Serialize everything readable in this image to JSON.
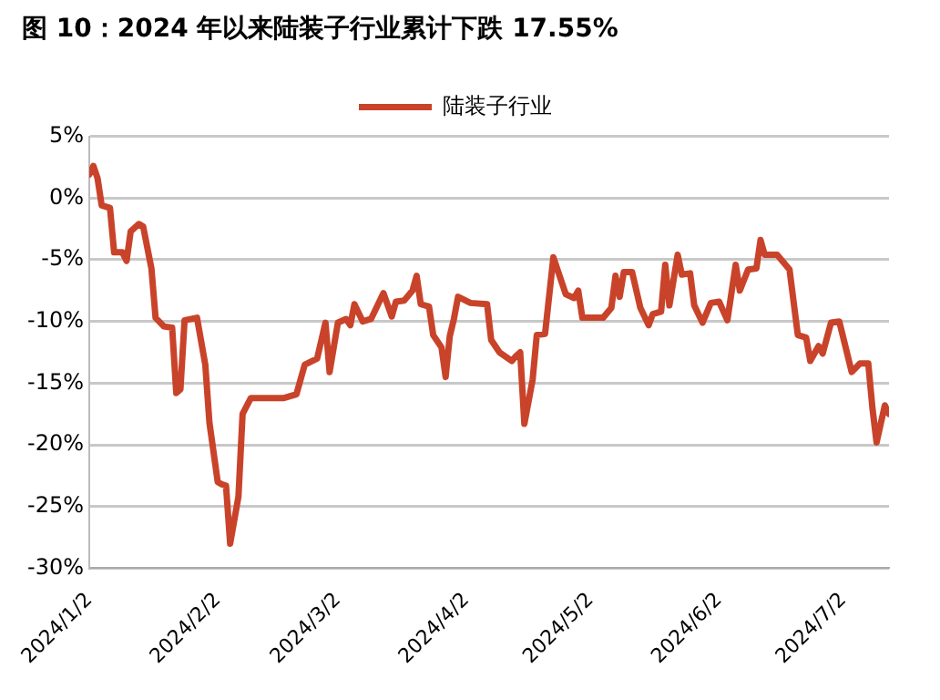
{
  "chart_data": {
    "type": "line",
    "title": "图 10：2024 年以来陆装子行业累计下跌 17.55%",
    "x": [
      "2024-01-02",
      "2024-01-03",
      "2024-01-04",
      "2024-01-05",
      "2024-01-07",
      "2024-01-08",
      "2024-01-10",
      "2024-01-11",
      "2024-01-12",
      "2024-01-14",
      "2024-01-15",
      "2024-01-17",
      "2024-01-18",
      "2024-01-20",
      "2024-01-22",
      "2024-01-23",
      "2024-01-24",
      "2024-01-25",
      "2024-01-28",
      "2024-01-30",
      "2024-01-31",
      "2024-02-02",
      "2024-02-03",
      "2024-02-04",
      "2024-02-05",
      "2024-02-07",
      "2024-02-08",
      "2024-02-10",
      "2024-02-18",
      "2024-02-21",
      "2024-02-23",
      "2024-02-26",
      "2024-02-28",
      "2024-02-29",
      "2024-03-02",
      "2024-03-04",
      "2024-03-05",
      "2024-03-06",
      "2024-03-08",
      "2024-03-10",
      "2024-03-13",
      "2024-03-15",
      "2024-03-16",
      "2024-03-18",
      "2024-03-20",
      "2024-03-21",
      "2024-03-22",
      "2024-03-24",
      "2024-03-25",
      "2024-03-27",
      "2024-03-28",
      "2024-03-29",
      "2024-03-30",
      "2024-03-31",
      "2024-04-03",
      "2024-04-07",
      "2024-04-08",
      "2024-04-10",
      "2024-04-13",
      "2024-04-14",
      "2024-04-15",
      "2024-04-16",
      "2024-04-18",
      "2024-04-19",
      "2024-04-21",
      "2024-04-23",
      "2024-04-26",
      "2024-04-28",
      "2024-04-29",
      "2024-04-30",
      "2024-05-05",
      "2024-05-07",
      "2024-05-08",
      "2024-05-09",
      "2024-05-10",
      "2024-05-12",
      "2024-05-14",
      "2024-05-16",
      "2024-05-17",
      "2024-05-19",
      "2024-05-20",
      "2024-05-21",
      "2024-05-23",
      "2024-05-24",
      "2024-05-26",
      "2024-05-27",
      "2024-05-29",
      "2024-05-31",
      "2024-06-02",
      "2024-06-04",
      "2024-06-06",
      "2024-06-07",
      "2024-06-09",
      "2024-06-11",
      "2024-06-12",
      "2024-06-13",
      "2024-06-16",
      "2024-06-19",
      "2024-06-21",
      "2024-06-23",
      "2024-06-24",
      "2024-06-26",
      "2024-06-27",
      "2024-06-29",
      "2024-07-01",
      "2024-07-04",
      "2024-07-06",
      "2024-07-08",
      "2024-07-09",
      "2024-07-10",
      "2024-07-12",
      "2024-07-13"
    ],
    "series": [
      {
        "name": "陆装子行业",
        "color": "#c9432a",
        "values": [
          1.9,
          2.6,
          1.6,
          -0.6,
          -0.8,
          -4.4,
          -4.4,
          -5.1,
          -2.7,
          -2.1,
          -2.3,
          -5.7,
          -9.7,
          -10.4,
          -10.5,
          -15.8,
          -15.5,
          -9.9,
          -9.7,
          -13.5,
          -18.2,
          -23,
          -23.2,
          -23.3,
          -28,
          -24.2,
          -17.5,
          -16.2,
          -16.2,
          -15.9,
          -13.5,
          -13,
          -10.1,
          -14.1,
          -10.1,
          -9.8,
          -10.3,
          -8.6,
          -10,
          -9.8,
          -7.7,
          -9.6,
          -8.4,
          -8.3,
          -7.5,
          -6.3,
          -8.6,
          -8.8,
          -11.1,
          -12.1,
          -14.5,
          -11.2,
          -9.8,
          -8,
          -8.5,
          -8.6,
          -11.5,
          -12.5,
          -13.2,
          -12.8,
          -12.5,
          -18.3,
          -14.7,
          -11.1,
          -11,
          -4.8,
          -7.8,
          -8.1,
          -7.5,
          -9.7,
          -9.7,
          -8.9,
          -6.3,
          -8,
          -6,
          -6,
          -8.9,
          -10.3,
          -9.4,
          -9.2,
          -5.4,
          -8.7,
          -4.6,
          -6.2,
          -6.1,
          -8.7,
          -10.1,
          -8.5,
          -8.4,
          -9.9,
          -5.4,
          -7.5,
          -5.8,
          -5.7,
          -3.4,
          -4.6,
          -4.6,
          -5.8,
          -11.1,
          -11.3,
          -13.2,
          -12,
          -12.6,
          -10.1,
          -10,
          -14.1,
          -13.4,
          -13.4,
          -17,
          -19.8,
          -16.8,
          -17.5
        ]
      }
    ],
    "xlim": [
      "2024-01-02",
      "2024-07-13"
    ],
    "xticks": [
      {
        "value": "2024-01-02",
        "label": "2024/1/2"
      },
      {
        "value": "2024-02-02",
        "label": "2024/2/2"
      },
      {
        "value": "2024-03-02",
        "label": "2024/3/2"
      },
      {
        "value": "2024-04-02",
        "label": "2024/4/2"
      },
      {
        "value": "2024-05-02",
        "label": "2024/5/2"
      },
      {
        "value": "2024-06-02",
        "label": "2024/6/2"
      },
      {
        "value": "2024-07-02",
        "label": "2024/7/2"
      }
    ],
    "ylim": [
      -30,
      5
    ],
    "yticks": [
      {
        "value": -30,
        "label": "-30%"
      },
      {
        "value": -25,
        "label": "-25%"
      },
      {
        "value": -20,
        "label": "-20%"
      },
      {
        "value": -15,
        "label": "-15%"
      },
      {
        "value": -10,
        "label": "-10%"
      },
      {
        "value": -5,
        "label": "-5%"
      },
      {
        "value": 0,
        "label": "0%"
      },
      {
        "value": 5,
        "label": "5%"
      }
    ],
    "grid": "y",
    "legend": "top"
  }
}
